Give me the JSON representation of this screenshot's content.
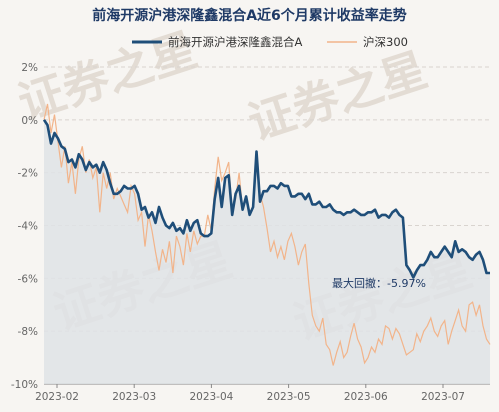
{
  "chart_data": {
    "type": "line",
    "title": "前海开源沪港深隆鑫混合A近6个月累计收益率走势",
    "xlabel": "",
    "ylabel": "",
    "x_ticks": [
      "2023-02",
      "2023-03",
      "2023-04",
      "2023-05",
      "2023-06",
      "2023-07"
    ],
    "y_ticks": [
      "2%",
      "0%",
      "-2%",
      "-4%",
      "-6%",
      "-8%",
      "-10%"
    ],
    "ylim": [
      -10,
      2
    ],
    "grid": "horizontal",
    "legend_position": "top",
    "annotation": "最大回撤：-5.97%",
    "watermark": "证券之星",
    "series": [
      {
        "name": "前海开源沪港深隆鑫混合A",
        "color": "#1f4e79",
        "values": [
          0.0,
          -0.2,
          -0.9,
          -0.5,
          -0.7,
          -1.0,
          -1.1,
          -1.6,
          -1.5,
          -1.8,
          -1.3,
          -1.5,
          -1.9,
          -1.6,
          -1.8,
          -1.7,
          -2.0,
          -1.6,
          -1.9,
          -2.4,
          -2.8,
          -2.8,
          -2.7,
          -2.5,
          -2.6,
          -2.6,
          -2.5,
          -2.8,
          -3.4,
          -3.3,
          -3.7,
          -3.5,
          -3.9,
          -3.3,
          -3.7,
          -4.0,
          -4.1,
          -3.9,
          -4.2,
          -4.1,
          -4.3,
          -3.8,
          -4.2,
          -3.9,
          -3.8,
          -4.3,
          -4.4,
          -4.4,
          -4.3,
          -3.0,
          -2.2,
          -3.3,
          -2.2,
          -2.1,
          -3.6,
          -2.8,
          -2.5,
          -3.4,
          -2.9,
          -3.6,
          -3.3,
          -1.2,
          -3.1,
          -2.7,
          -2.7,
          -2.5,
          -2.5,
          -2.6,
          -2.4,
          -2.5,
          -2.5,
          -2.9,
          -2.9,
          -2.8,
          -2.8,
          -3.0,
          -2.8,
          -3.2,
          -3.2,
          -3.1,
          -3.3,
          -3.3,
          -3.2,
          -3.4,
          -3.5,
          -3.5,
          -3.6,
          -3.5,
          -3.5,
          -3.4,
          -3.5,
          -3.6,
          -3.6,
          -3.5,
          -3.5,
          -3.4,
          -3.7,
          -3.6,
          -3.6,
          -3.7,
          -3.5,
          -3.4,
          -3.6,
          -3.7,
          -5.5,
          -5.7,
          -5.97,
          -5.7,
          -5.5,
          -5.5,
          -5.3,
          -5.0,
          -5.2,
          -5.2,
          -5.0,
          -4.8,
          -5.0,
          -5.2,
          -4.6,
          -5.0,
          -4.9,
          -5.0,
          -5.2,
          -5.3,
          -5.1,
          -5.0,
          -5.3,
          -5.8,
          -5.8
        ]
      },
      {
        "name": "沪深300",
        "color": "#f2b48a",
        "values": [
          0.0,
          0.6,
          -0.5,
          0.2,
          -0.8,
          -1.8,
          -1.0,
          -2.4,
          -1.6,
          -2.8,
          -1.5,
          -1.0,
          -2.0,
          -1.5,
          -2.2,
          -1.8,
          -3.5,
          -2.0,
          -2.6,
          -2.0,
          -3.0,
          -2.6,
          -2.9,
          -3.2,
          -3.5,
          -2.5,
          -2.8,
          -3.8,
          -3.5,
          -4.8,
          -3.6,
          -4.2,
          -5.0,
          -5.7,
          -4.9,
          -5.4,
          -4.6,
          -5.8,
          -4.4,
          -4.8,
          -5.5,
          -4.3,
          -5.0,
          -4.2,
          -4.7,
          -4.4,
          -4.4,
          -3.6,
          -4.2,
          -2.6,
          -1.4,
          -2.3,
          -2.0,
          -1.6,
          -3.5,
          -3.0,
          -2.0,
          -3.4,
          -2.9,
          -3.5,
          -3.3,
          -1.6,
          -2.8,
          -3.3,
          -4.1,
          -5.0,
          -4.6,
          -5.2,
          -4.8,
          -5.3,
          -4.6,
          -4.3,
          -4.8,
          -5.5,
          -5.0,
          -4.7,
          -6.2,
          -7.4,
          -7.8,
          -8.0,
          -7.5,
          -8.5,
          -8.7,
          -9.3,
          -8.8,
          -8.4,
          -9.0,
          -8.8,
          -8.2,
          -7.7,
          -8.3,
          -8.6,
          -9.2,
          -9.0,
          -8.6,
          -8.8,
          -8.3,
          -8.5,
          -7.8,
          -7.9,
          -8.3,
          -7.9,
          -8.1,
          -8.5,
          -8.9,
          -8.8,
          -8.7,
          -8.1,
          -8.4,
          -8.0,
          -7.8,
          -7.5,
          -8.0,
          -8.2,
          -7.8,
          -7.6,
          -8.5,
          -8.0,
          -7.6,
          -7.2,
          -7.8,
          -8.0,
          -7.0,
          -6.9,
          -7.4,
          -7.0,
          -7.8,
          -8.3,
          -8.5
        ]
      }
    ]
  }
}
